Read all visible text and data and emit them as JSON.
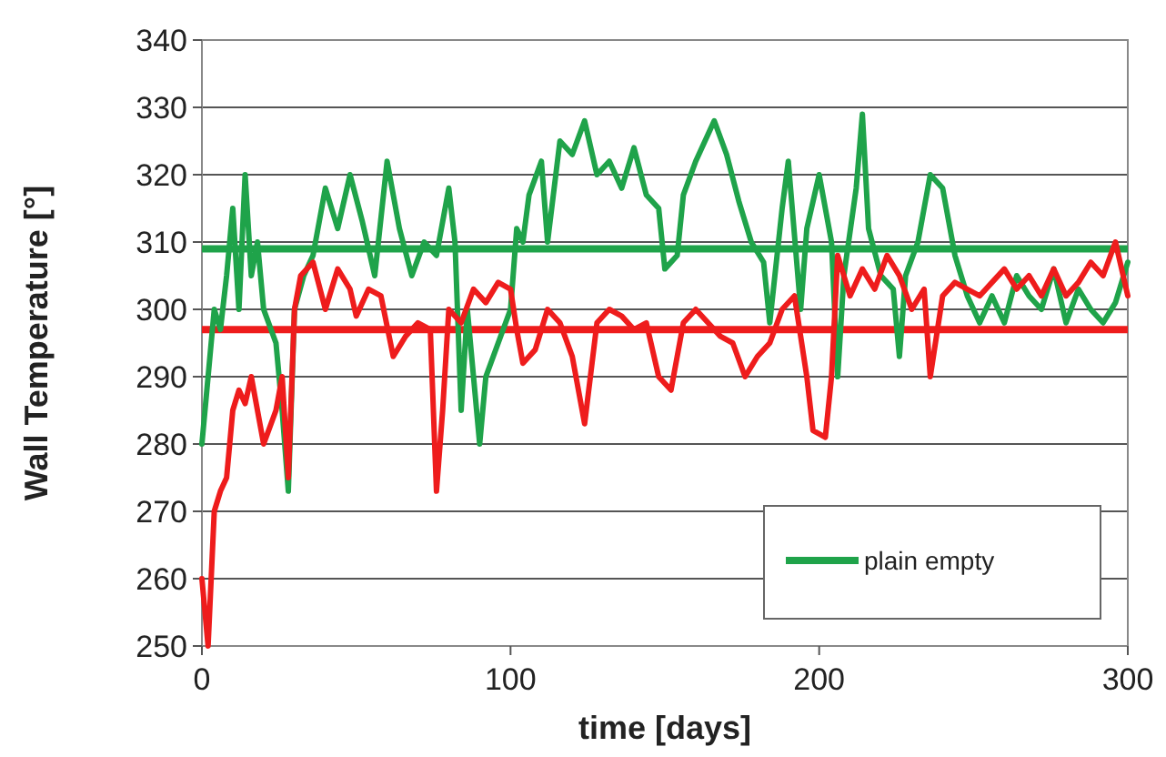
{
  "chart_data": {
    "type": "line",
    "xlabel": "time [days]",
    "ylabel": "Wall Temperature [°]",
    "xlim": [
      0,
      300
    ],
    "xticks": [
      0,
      100,
      200,
      300
    ],
    "ylim": [
      250,
      340
    ],
    "yticks": [
      250,
      260,
      270,
      280,
      290,
      300,
      310,
      320,
      330,
      340
    ],
    "grid": "y",
    "legend": "bottom right",
    "line_style": "solid",
    "series": [
      {
        "name": "plain empty",
        "color": "#1fa34a",
        "x": [
          0,
          2,
          4,
          6,
          8,
          10,
          12,
          14,
          16,
          18,
          20,
          24,
          26,
          28,
          30,
          33,
          36,
          40,
          44,
          48,
          52,
          56,
          60,
          64,
          68,
          72,
          76,
          80,
          82,
          84,
          86,
          88,
          90,
          92,
          96,
          100,
          102,
          104,
          106,
          110,
          112,
          116,
          120,
          124,
          128,
          132,
          136,
          140,
          144,
          148,
          150,
          154,
          156,
          160,
          166,
          170,
          174,
          178,
          182,
          184,
          188,
          190,
          194,
          196,
          200,
          204,
          206,
          208,
          212,
          214,
          216,
          220,
          224,
          226,
          228,
          232,
          236,
          240,
          244,
          248,
          252,
          256,
          260,
          264,
          268,
          272,
          276,
          280,
          284,
          288,
          292,
          296,
          300
        ],
        "values": [
          280,
          290,
          300,
          297,
          305,
          315,
          300,
          320,
          305,
          310,
          300,
          295,
          285,
          273,
          300,
          305,
          308,
          318,
          312,
          320,
          313,
          305,
          322,
          312,
          305,
          310,
          308,
          318,
          310,
          285,
          300,
          290,
          280,
          290,
          295,
          300,
          312,
          310,
          317,
          322,
          310,
          325,
          323,
          328,
          320,
          322,
          318,
          324,
          317,
          315,
          306,
          308,
          317,
          322,
          328,
          323,
          316,
          310,
          307,
          298,
          315,
          322,
          300,
          312,
          320,
          310,
          290,
          305,
          318,
          329,
          312,
          305,
          303,
          293,
          305,
          310,
          320,
          318,
          308,
          302,
          298,
          302,
          298,
          305,
          302,
          300,
          306,
          298,
          303,
          300,
          298,
          301,
          307
        ]
      },
      {
        "color": "#ee1c1c",
        "x": [
          0,
          2,
          4,
          6,
          8,
          10,
          12,
          14,
          16,
          20,
          24,
          26,
          28,
          30,
          32,
          36,
          40,
          44,
          48,
          50,
          54,
          58,
          62,
          66,
          70,
          74,
          76,
          78,
          80,
          84,
          88,
          92,
          96,
          100,
          102,
          104,
          108,
          112,
          116,
          120,
          124,
          128,
          132,
          136,
          140,
          144,
          148,
          152,
          156,
          160,
          164,
          168,
          172,
          176,
          180,
          184,
          188,
          192,
          196,
          198,
          202,
          204,
          206,
          210,
          214,
          218,
          222,
          226,
          230,
          234,
          236,
          240,
          244,
          248,
          252,
          256,
          260,
          264,
          268,
          272,
          276,
          280,
          284,
          288,
          292,
          296,
          300
        ],
        "values": [
          260,
          250,
          270,
          273,
          275,
          285,
          288,
          286,
          290,
          280,
          285,
          290,
          275,
          300,
          305,
          307,
          300,
          306,
          303,
          299,
          303,
          302,
          293,
          296,
          298,
          297,
          273,
          285,
          300,
          298,
          303,
          301,
          304,
          303,
          297,
          292,
          294,
          300,
          298,
          293,
          283,
          298,
          300,
          299,
          297,
          298,
          290,
          288,
          298,
          300,
          298,
          296,
          295,
          290,
          293,
          295,
          300,
          302,
          290,
          282,
          281,
          290,
          308,
          302,
          306,
          303,
          308,
          305,
          300,
          303,
          290,
          302,
          304,
          303,
          302,
          304,
          306,
          303,
          305,
          302,
          306,
          302,
          304,
          307,
          305,
          310,
          302
        ]
      }
    ],
    "ref_lines": [
      {
        "axis": "y",
        "value": 309,
        "color": "#1fa34a"
      },
      {
        "axis": "y",
        "value": 297,
        "color": "#ee1c1c"
      }
    ]
  }
}
